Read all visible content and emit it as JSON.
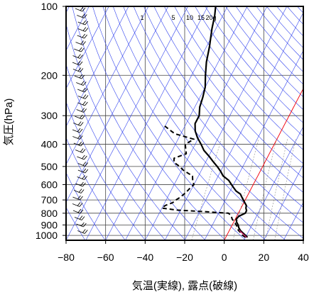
{
  "chart_data": {
    "type": "skew-t",
    "xlabel": "気温(実線), 露点(破線)",
    "ylabel": "気圧(hPa)",
    "x_ticks": [
      -80,
      -60,
      -40,
      -20,
      0,
      20,
      40
    ],
    "x_tick_labels": [
      "−80",
      "−60",
      "−40",
      "−20",
      "0",
      "20",
      "40"
    ],
    "xlim": [
      -80,
      40
    ],
    "y_ticks": [
      100,
      200,
      300,
      400,
      500,
      600,
      700,
      800,
      900,
      1000
    ],
    "y_tick_labels": [
      "100",
      "200",
      "300",
      "400",
      "500",
      "600",
      "700",
      "800",
      "900",
      "1000"
    ],
    "ylim": [
      1050,
      100
    ],
    "y_scale": "log",
    "grid": true,
    "mixing_ratio_labels": [
      "1",
      "5",
      "10",
      "15",
      "20g"
    ],
    "colors": {
      "temperature": "#000000",
      "dewpoint": "#000000",
      "adiabats": "#3344ee",
      "isotherm_zero": "#ff0000",
      "surface_highlight": "#cc2266"
    },
    "temperature": [
      [
        1020,
        11
      ],
      [
        1000,
        9.5
      ],
      [
        975,
        7.5
      ],
      [
        950,
        5.5
      ],
      [
        925,
        4
      ],
      [
        900,
        3
      ],
      [
        875,
        1.5
      ],
      [
        850,
        0.5
      ],
      [
        825,
        1
      ],
      [
        800,
        3.5
      ],
      [
        780,
        3.5
      ],
      [
        760,
        2.5
      ],
      [
        740,
        2
      ],
      [
        720,
        0.5
      ],
      [
        700,
        -1
      ],
      [
        680,
        -2.5
      ],
      [
        660,
        -4
      ],
      [
        640,
        -7
      ],
      [
        620,
        -9
      ],
      [
        600,
        -11
      ],
      [
        575,
        -13.5
      ],
      [
        550,
        -17.5
      ],
      [
        525,
        -20
      ],
      [
        500,
        -23
      ],
      [
        475,
        -26.5
      ],
      [
        450,
        -30
      ],
      [
        425,
        -34
      ],
      [
        400,
        -37
      ],
      [
        375,
        -40.5
      ],
      [
        350,
        -43.5
      ],
      [
        325,
        -45.5
      ],
      [
        300,
        -45.5
      ],
      [
        275,
        -47.5
      ],
      [
        250,
        -48.5
      ],
      [
        225,
        -50
      ],
      [
        200,
        -53
      ],
      [
        175,
        -56
      ],
      [
        150,
        -58.5
      ],
      [
        125,
        -62
      ],
      [
        110,
        -64
      ],
      [
        100,
        -66
      ]
    ],
    "dewpoint": [
      [
        1020,
        10
      ],
      [
        1000,
        8
      ],
      [
        975,
        6.5
      ],
      [
        950,
        4.5
      ],
      [
        925,
        3.5
      ],
      [
        900,
        2
      ],
      [
        875,
        0.5
      ],
      [
        850,
        -1.5
      ],
      [
        820,
        -3
      ],
      [
        800,
        -5
      ],
      [
        785,
        -20
      ],
      [
        775,
        -32
      ],
      [
        760,
        -40
      ],
      [
        740,
        -39
      ],
      [
        720,
        -36
      ],
      [
        700,
        -35
      ],
      [
        680,
        -33.5
      ],
      [
        650,
        -32
      ],
      [
        620,
        -31
      ],
      [
        600,
        -30
      ],
      [
        580,
        -31.5
      ],
      [
        550,
        -33
      ],
      [
        520,
        -39
      ],
      [
        500,
        -42
      ],
      [
        480,
        -46
      ],
      [
        460,
        -47
      ],
      [
        440,
        -42
      ],
      [
        420,
        -43.5
      ],
      [
        400,
        -45
      ],
      [
        380,
        -42
      ],
      [
        360,
        -53
      ],
      [
        345,
        -57
      ],
      [
        330,
        -61
      ]
    ]
  }
}
